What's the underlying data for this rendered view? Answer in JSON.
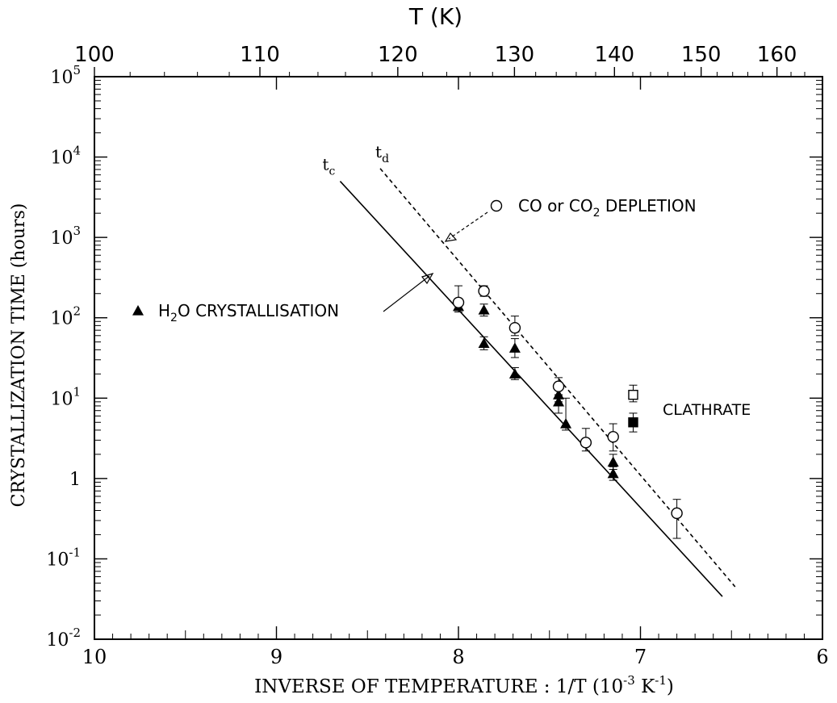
{
  "chart_data": {
    "type": "scatter",
    "title": "",
    "top_axis": {
      "label": "T (K)",
      "ticks": [
        "100",
        "110",
        "120",
        "130",
        "140",
        "150",
        "160"
      ]
    },
    "xlabel": {
      "main": "INVERSE OF TEMPERATURE : 1/T (10",
      "exp": "-3",
      "unit": " K",
      "unit_exp": "-1",
      "close": ")"
    },
    "ylabel": "CRYSTALLIZATION TIME (hours)",
    "xlim": [
      10,
      6
    ],
    "ylim": [
      0.01,
      100000
    ],
    "y_scale": "log",
    "x_ticks": [
      "10",
      "9",
      "8",
      "7",
      "6"
    ],
    "y_ticks": [
      {
        "base": "10",
        "exp": "-2",
        "value": 0.01
      },
      {
        "base": "10",
        "exp": "-1",
        "value": 0.1
      },
      {
        "base": "1",
        "exp": "",
        "value": 1
      },
      {
        "base": "10",
        "exp": "1",
        "value": 10
      },
      {
        "base": "10",
        "exp": "2",
        "value": 100
      },
      {
        "base": "10",
        "exp": "3",
        "value": 1000
      },
      {
        "base": "10",
        "exp": "4",
        "value": 10000
      },
      {
        "base": "10",
        "exp": "5",
        "value": 100000
      }
    ],
    "lines": [
      {
        "label": "t",
        "sub": "c",
        "style": "solid",
        "points": [
          [
            8.65,
            5000
          ],
          [
            6.55,
            0.034
          ]
        ]
      },
      {
        "label": "t",
        "sub": "d",
        "style": "dashed",
        "points": [
          [
            8.43,
            7200
          ],
          [
            6.48,
            0.045
          ]
        ]
      }
    ],
    "series": [
      {
        "name": "H2O CRYSTALLISATION",
        "legend": {
          "pre": "H",
          "sub": "2",
          "post": "O CRYSTALLISATION"
        },
        "marker": "filled-triangle",
        "points": [
          {
            "x": 8.0,
            "y": 138,
            "lo": 118,
            "hi": 160
          },
          {
            "x": 7.86,
            "y": 125,
            "lo": 105,
            "hi": 148
          },
          {
            "x": 7.86,
            "y": 48,
            "lo": 40,
            "hi": 58
          },
          {
            "x": 7.69,
            "y": 42,
            "lo": 32,
            "hi": 55
          },
          {
            "x": 7.69,
            "y": 20,
            "lo": 17,
            "hi": 24
          },
          {
            "x": 7.45,
            "y": 11,
            "lo": 9,
            "hi": 14
          },
          {
            "x": 7.45,
            "y": 9,
            "lo": 6.5,
            "hi": 11
          },
          {
            "x": 7.41,
            "y": 4.8,
            "lo": 4,
            "hi": 10
          },
          {
            "x": 7.15,
            "y": 1.6,
            "lo": 1.3,
            "hi": 2
          },
          {
            "x": 7.15,
            "y": 1.15,
            "lo": 0.95,
            "hi": 1.4
          }
        ]
      },
      {
        "name": "CO or CO2 DEPLETION",
        "legend": {
          "pre": "CO or CO",
          "sub": "2",
          "post": " DEPLETION"
        },
        "marker": "open-circle",
        "points": [
          {
            "x": 8.0,
            "y": 155,
            "lo": 125,
            "hi": 250
          },
          {
            "x": 7.86,
            "y": 215,
            "lo": 185,
            "hi": 250
          },
          {
            "x": 7.69,
            "y": 75,
            "lo": 60,
            "hi": 105
          },
          {
            "x": 7.45,
            "y": 14,
            "lo": 11,
            "hi": 18
          },
          {
            "x": 7.3,
            "y": 2.8,
            "lo": 2.2,
            "hi": 4.2
          },
          {
            "x": 7.15,
            "y": 3.3,
            "lo": 2.2,
            "hi": 4.8
          },
          {
            "x": 6.8,
            "y": 0.37,
            "lo": 0.18,
            "hi": 0.55
          }
        ]
      },
      {
        "name": "CLATHRATE",
        "legend": {
          "pre": "CLATHRATE",
          "sub": "",
          "post": ""
        },
        "marker": "square",
        "points": [
          {
            "x": 7.04,
            "y": 11,
            "lo": 9,
            "hi": 14.5,
            "fill": "open"
          },
          {
            "x": 7.04,
            "y": 5,
            "lo": 3.8,
            "hi": 6.5,
            "fill": "filled"
          }
        ]
      }
    ],
    "grid": false
  }
}
